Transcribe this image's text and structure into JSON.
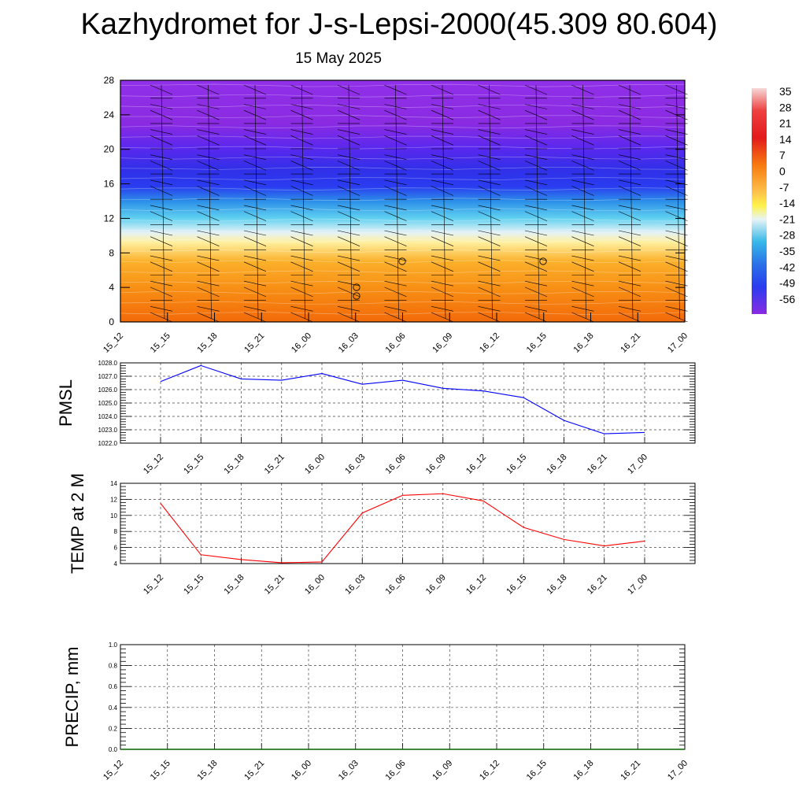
{
  "header": {
    "title": "Kazhydromet for J-s-Lepsi-2000(45.309 80.604)",
    "date": "15 May 2025"
  },
  "colorbar": {
    "labels": [
      "35",
      "28",
      "21",
      "14",
      "7",
      "0",
      "-7",
      "-14",
      "-21",
      "-28",
      "-35",
      "-42",
      "-49",
      "-56"
    ],
    "colors": {
      "warm_top": "#f4c8c8",
      "red": "#e31a1c",
      "orange": "#f77a10",
      "yellow": "#fff24a",
      "pale": "#e6f2f5",
      "cyan": "#36b8e8",
      "blue": "#2a3cf0",
      "purple": "#8a2be2"
    }
  },
  "chart_data": [
    {
      "type": "heatmap",
      "title": "",
      "ylim": [
        0,
        28
      ],
      "y_ticks": [
        "0",
        "4",
        "8",
        "12",
        "16",
        "20",
        "24",
        "28"
      ],
      "x_ticks": [
        "15_12",
        "15_15",
        "15_18",
        "15_21",
        "16_00",
        "16_03",
        "16_06",
        "16_09",
        "16_12",
        "16_15",
        "16_18",
        "16_21",
        "17_00"
      ],
      "description_values": "temperature cross-section with wind barbs; warm (≈0 to 14) below ~10, cold (≈-14 to -56) above ~12"
    },
    {
      "type": "line",
      "ylabel": "PMSL",
      "ylim": [
        1022.0,
        1028.0
      ],
      "y_ticks": [
        "1022.0",
        "1023.0",
        "1024.0",
        "1025.0",
        "1026.0",
        "1027.0",
        "1028.0"
      ],
      "x": [
        "15_12",
        "15_15",
        "15_18",
        "15_21",
        "16_00",
        "16_03",
        "16_06",
        "16_09",
        "16_12",
        "16_15",
        "16_18",
        "16_21",
        "17_00"
      ],
      "series": [
        {
          "values": [
            1026.6,
            1027.8,
            1026.8,
            1026.7,
            1027.2,
            1026.4,
            1026.7,
            1026.1,
            1025.9,
            1025.4,
            1023.7,
            1022.7,
            1022.8
          ],
          "color": "#0000ff"
        }
      ]
    },
    {
      "type": "line",
      "ylabel": "TEMP at 2 M",
      "ylim": [
        4,
        14
      ],
      "y_ticks": [
        "4",
        "6",
        "8",
        "10",
        "12",
        "14"
      ],
      "x": [
        "15_12",
        "15_15",
        "15_18",
        "15_21",
        "16_00",
        "16_03",
        "16_06",
        "16_09",
        "16_12",
        "16_15",
        "16_18",
        "16_21",
        "17_00"
      ],
      "series": [
        {
          "values": [
            11.5,
            5.1,
            4.5,
            4.1,
            4.2,
            10.3,
            12.5,
            12.7,
            11.8,
            8.5,
            7.0,
            6.2,
            6.8
          ],
          "color": "#ff0000"
        }
      ]
    },
    {
      "type": "line",
      "ylabel": "PRECIP, mm",
      "ylim": [
        0.0,
        1.0
      ],
      "y_ticks": [
        "0.0",
        "0.2",
        "0.4",
        "0.6",
        "0.8",
        "1.0"
      ],
      "x": [
        "15_12",
        "15_15",
        "15_18",
        "15_21",
        "16_00",
        "16_03",
        "16_06",
        "16_09",
        "16_12",
        "16_15",
        "16_18",
        "16_21",
        "17_00"
      ],
      "series": [
        {
          "values": [
            0,
            0,
            0,
            0,
            0,
            0,
            0,
            0,
            0,
            0,
            0,
            0,
            0
          ],
          "color": "#006400"
        }
      ]
    }
  ]
}
